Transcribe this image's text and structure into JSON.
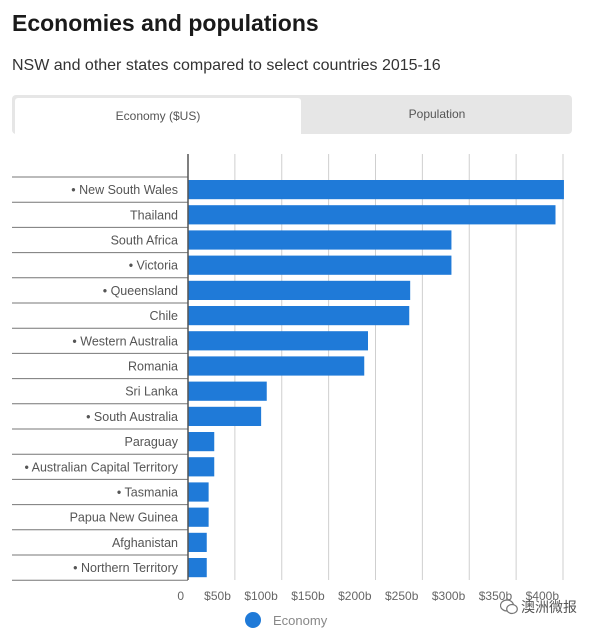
{
  "header": {
    "title": "Economies and populations",
    "subtitle": "NSW and other states compared to select countries 2015-16"
  },
  "tabs": [
    {
      "label": "Economy ($US)",
      "active": true
    },
    {
      "label": "Population",
      "active": false
    }
  ],
  "legend": {
    "label": "Economy",
    "color": "#1f7ad8"
  },
  "watermark": {
    "text": "澳洲微报"
  },
  "chart_data": {
    "type": "bar",
    "orientation": "horizontal",
    "title": "Economies and populations",
    "subtitle": "NSW and other states compared to select countries 2015-16",
    "categories": [
      "• New South Wales",
      "Thailand",
      "South Africa",
      "• Victoria",
      "• Queensland",
      "Chile",
      "• Western Australia",
      "Romania",
      "Sri Lanka",
      "• South Australia",
      "Paraguay",
      "• Australian Capital Territory",
      "• Tasmania",
      "Papua New Guinea",
      "Afghanistan",
      "• Northern Territory"
    ],
    "series": [
      {
        "name": "Economy",
        "color": "#1f7ad8",
        "values": [
          401,
          392,
          281,
          281,
          237,
          236,
          192,
          188,
          84,
          78,
          28,
          28,
          22,
          22,
          20,
          20
        ]
      }
    ],
    "x_ticks": [
      "0",
      "$50b",
      "$100b",
      "$150b",
      "$200b",
      "$250b",
      "$300b",
      "$350b",
      "$400b"
    ],
    "x_tick_values": [
      0,
      50,
      100,
      150,
      200,
      250,
      300,
      350,
      400
    ],
    "xlim": [
      0,
      400
    ],
    "units": "$US billions",
    "grid": true
  }
}
